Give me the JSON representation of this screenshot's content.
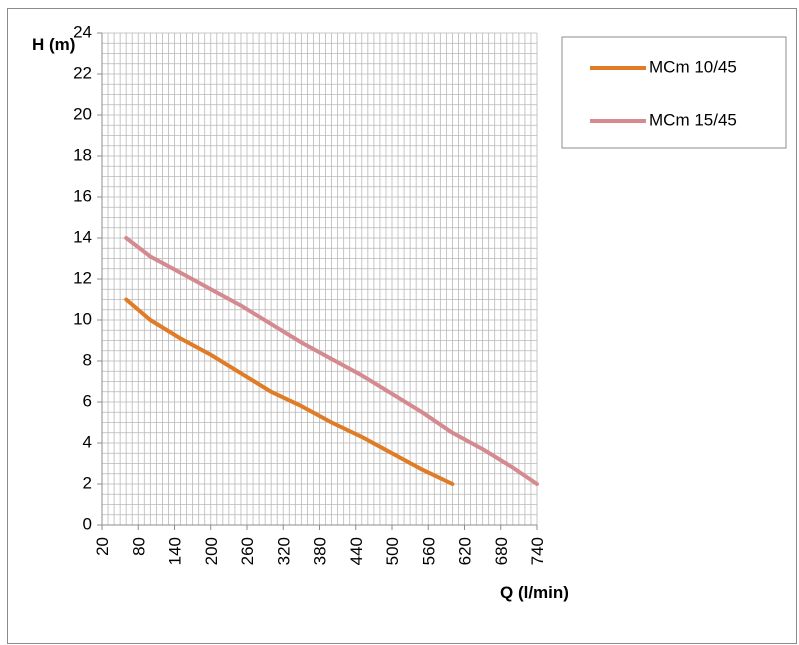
{
  "chart_data": {
    "type": "line",
    "title": "",
    "xlabel": "Q (l/min)",
    "ylabel": "H (m)",
    "x_ticks": [
      20,
      80,
      140,
      200,
      260,
      320,
      380,
      440,
      500,
      560,
      620,
      680,
      740
    ],
    "xlim": [
      20,
      740
    ],
    "y_ticks": [
      0,
      2,
      4,
      6,
      8,
      10,
      12,
      14,
      16,
      18,
      20,
      22,
      24
    ],
    "ylim": [
      0,
      24
    ],
    "grid": true,
    "legend": "right",
    "series": [
      {
        "name": "MCm 10/45",
        "color": "#e07b26",
        "x": [
          60,
          100,
          150,
          200,
          250,
          300,
          350,
          400,
          450,
          500,
          550,
          600
        ],
        "y": [
          11,
          10,
          9.1,
          8.3,
          7.4,
          6.5,
          5.8,
          5.0,
          4.3,
          3.5,
          2.7,
          2.0
        ]
      },
      {
        "name": "MCm 15/45",
        "color": "#d58a8f",
        "x": [
          60,
          100,
          150,
          200,
          250,
          300,
          350,
          400,
          450,
          500,
          550,
          600,
          650,
          700,
          740
        ],
        "y": [
          14,
          13.1,
          12.3,
          11.5,
          10.7,
          9.8,
          8.9,
          8.1,
          7.3,
          6.4,
          5.5,
          4.5,
          3.7,
          2.8,
          2.0
        ]
      }
    ]
  }
}
